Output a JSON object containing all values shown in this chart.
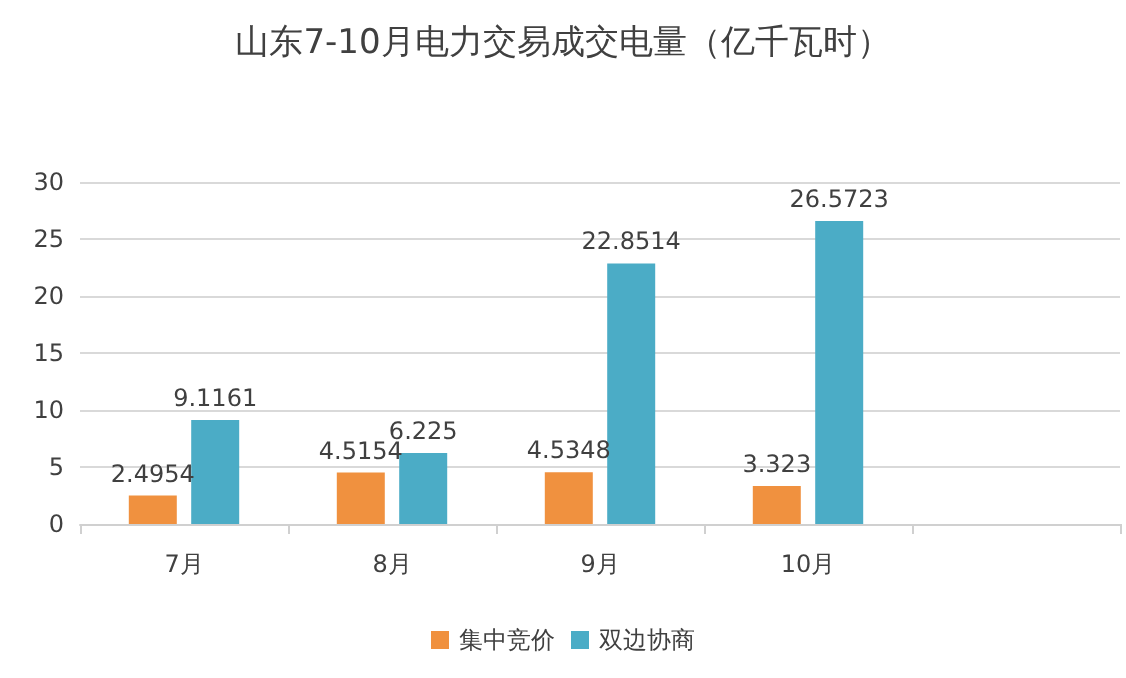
{
  "chart_data": {
    "type": "bar",
    "title": "山东7-10月电力交易成交电量（亿千瓦时）",
    "categories": [
      "7月",
      "8月",
      "9月",
      "10月",
      null
    ],
    "series": [
      {
        "name": "集中竞价",
        "color": "#f0913f",
        "values": [
          2.4954,
          4.5154,
          4.5348,
          3.323,
          null
        ]
      },
      {
        "name": "双边协商",
        "color": "#4bacc6",
        "values": [
          9.1161,
          6.225,
          22.8514,
          26.5723,
          null
        ]
      }
    ],
    "ylim": [
      0,
      30
    ],
    "yticks": [
      0,
      5,
      10,
      15,
      20,
      25,
      30
    ],
    "grid": "y",
    "legend": "bottom",
    "data_labels": true
  }
}
